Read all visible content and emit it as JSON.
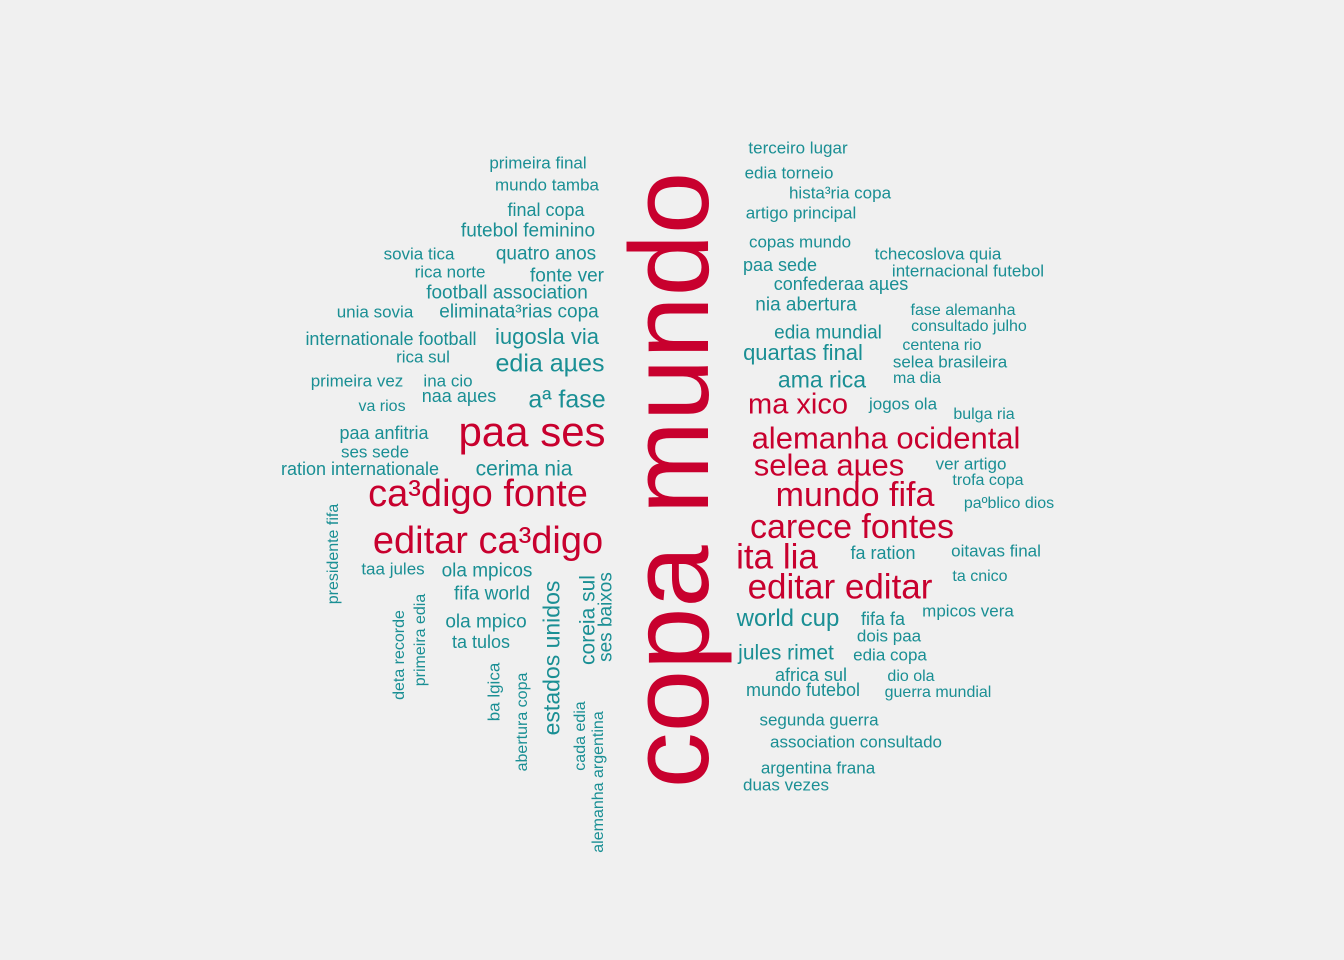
{
  "colors": {
    "background": "#f0f0f0",
    "major": "#c8002e",
    "minor": "#1a8f94"
  },
  "words": [
    {
      "text": "copa mundo",
      "weight": 100
    },
    {
      "text": "paa ses",
      "weight": 40
    },
    {
      "text": "ca³digo fonte",
      "weight": 38
    },
    {
      "text": "editar ca³digo",
      "weight": 38
    },
    {
      "text": "alemanha ocidental",
      "weight": 32
    },
    {
      "text": "selea aµes",
      "weight": 32
    },
    {
      "text": "mundo fifa",
      "weight": 34
    },
    {
      "text": "carece fontes",
      "weight": 34
    },
    {
      "text": "ita lia",
      "weight": 35
    },
    {
      "text": "editar editar",
      "weight": 35
    },
    {
      "text": "ma xico",
      "weight": 30
    },
    {
      "text": "edia aµes",
      "weight": 25
    },
    {
      "text": "aª fase",
      "weight": 25
    },
    {
      "text": "iugosla via",
      "weight": 22
    },
    {
      "text": "cerima nia",
      "weight": 21
    },
    {
      "text": "estados unidos",
      "weight": 23
    },
    {
      "text": "coreia sul",
      "weight": 21
    },
    {
      "text": "ses baixos",
      "weight": 19
    },
    {
      "text": "world cup",
      "weight": 24
    },
    {
      "text": "jules rimet",
      "weight": 21
    },
    {
      "text": "quartas final",
      "weight": 22
    },
    {
      "text": "ama rica",
      "weight": 23
    },
    {
      "text": "primeira final",
      "weight": 17
    },
    {
      "text": "mundo tamba",
      "weight": 17
    },
    {
      "text": "final copa",
      "weight": 18
    },
    {
      "text": "futebol feminino",
      "weight": 19
    },
    {
      "text": "sovia tica",
      "weight": 17
    },
    {
      "text": "quatro anos",
      "weight": 19
    },
    {
      "text": "rica norte",
      "weight": 17
    },
    {
      "text": "fonte ver",
      "weight": 19
    },
    {
      "text": "football association",
      "weight": 19
    },
    {
      "text": "unia sovia",
      "weight": 17
    },
    {
      "text": "eliminata³rias copa",
      "weight": 19
    },
    {
      "text": "internationale football",
      "weight": 18
    },
    {
      "text": "rica sul",
      "weight": 17
    },
    {
      "text": "primeira vez",
      "weight": 17
    },
    {
      "text": "ina cio",
      "weight": 17
    },
    {
      "text": "va rios",
      "weight": 16
    },
    {
      "text": "naa aµes",
      "weight": 18
    },
    {
      "text": "paa anfitria",
      "weight": 18
    },
    {
      "text": "ses sede",
      "weight": 17
    },
    {
      "text": "ration internationale",
      "weight": 18
    },
    {
      "text": "presidente fifa",
      "weight": 16
    },
    {
      "text": "taa jules",
      "weight": 17
    },
    {
      "text": "ola mpicos",
      "weight": 19
    },
    {
      "text": "fifa world",
      "weight": 19
    },
    {
      "text": "ola mpico",
      "weight": 19
    },
    {
      "text": "ta tulos",
      "weight": 18
    },
    {
      "text": "deta recorde",
      "weight": 16
    },
    {
      "text": "primeira edia",
      "weight": 16
    },
    {
      "text": "ba lgica",
      "weight": 17
    },
    {
      "text": "abertura copa",
      "weight": 16
    },
    {
      "text": "cada edia",
      "weight": 16
    },
    {
      "text": "alemanha argentina",
      "weight": 16
    },
    {
      "text": "terceiro lugar",
      "weight": 17
    },
    {
      "text": "edia torneio",
      "weight": 17
    },
    {
      "text": "hista³ria copa",
      "weight": 17
    },
    {
      "text": "artigo principal",
      "weight": 17
    },
    {
      "text": "copas mundo",
      "weight": 17
    },
    {
      "text": "tchecoslova quia",
      "weight": 17
    },
    {
      "text": "paa sede",
      "weight": 18
    },
    {
      "text": "internacional futebol",
      "weight": 17
    },
    {
      "text": "confederaa aµes",
      "weight": 18
    },
    {
      "text": "nia abertura",
      "weight": 19
    },
    {
      "text": "fase alemanha",
      "weight": 16
    },
    {
      "text": "consultado julho",
      "weight": 16
    },
    {
      "text": "edia mundial",
      "weight": 19
    },
    {
      "text": "centena rio",
      "weight": 16
    },
    {
      "text": "selea brasileira",
      "weight": 17
    },
    {
      "text": "ma dia",
      "weight": 16
    },
    {
      "text": "jogos ola",
      "weight": 17
    },
    {
      "text": "bulga ria",
      "weight": 16
    },
    {
      "text": "ver artigo",
      "weight": 17
    },
    {
      "text": "trofa copa",
      "weight": 16
    },
    {
      "text": "paºblico dios",
      "weight": 16
    },
    {
      "text": "fa ration",
      "weight": 18
    },
    {
      "text": "oitavas final",
      "weight": 17
    },
    {
      "text": "ta cnico",
      "weight": 16
    },
    {
      "text": "fifa fa",
      "weight": 18
    },
    {
      "text": "mpicos vera",
      "weight": 17
    },
    {
      "text": "dois paa",
      "weight": 17
    },
    {
      "text": "edia copa",
      "weight": 17
    },
    {
      "text": "africa sul",
      "weight": 18
    },
    {
      "text": "dio ola",
      "weight": 16
    },
    {
      "text": "mundo futebol",
      "weight": 18
    },
    {
      "text": "guerra mundial",
      "weight": 16
    },
    {
      "text": "segunda guerra",
      "weight": 17
    },
    {
      "text": "association consultado",
      "weight": 17
    },
    {
      "text": "argentina frana",
      "weight": 17
    },
    {
      "text": "duas vezes",
      "weight": 17
    }
  ]
}
